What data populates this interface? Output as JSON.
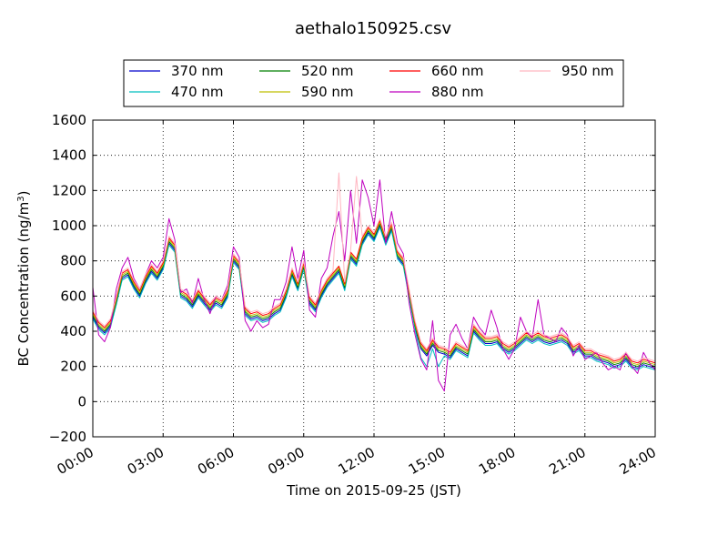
{
  "chart_data": {
    "type": "line",
    "title": "aethalo150925.csv",
    "xlabel": "Time on 2015-09-25 (JST)",
    "ylabel": "BC Concentration (ng/m",
    "ylabel_sup": "3",
    "ylabel_close": ")",
    "xlim": [
      0,
      24
    ],
    "ylim": [
      -200,
      1600
    ],
    "grid": true,
    "legend_position": "top",
    "x_ticks": [
      {
        "value": 0,
        "label": "00:00"
      },
      {
        "value": 3,
        "label": "03:00"
      },
      {
        "value": 6,
        "label": "06:00"
      },
      {
        "value": 9,
        "label": "09:00"
      },
      {
        "value": 12,
        "label": "12:00"
      },
      {
        "value": 15,
        "label": "15:00"
      },
      {
        "value": 18,
        "label": "18:00"
      },
      {
        "value": 21,
        "label": "21:00"
      },
      {
        "value": 24,
        "label": "24:00"
      }
    ],
    "y_ticks": [
      {
        "value": 1600,
        "label": "1600"
      },
      {
        "value": 1400,
        "label": "1400"
      },
      {
        "value": 1200,
        "label": "1200"
      },
      {
        "value": 1000,
        "label": "1000"
      },
      {
        "value": 800,
        "label": "800"
      },
      {
        "value": 600,
        "label": "600"
      },
      {
        "value": 400,
        "label": "400"
      },
      {
        "value": 200,
        "label": "200"
      },
      {
        "value": 0,
        "label": "0"
      },
      {
        "value": -200,
        "label": "−200"
      }
    ],
    "x_hours": [
      0,
      0.25,
      0.5,
      0.75,
      1.0,
      1.25,
      1.5,
      1.75,
      2.0,
      2.25,
      2.5,
      2.75,
      3.0,
      3.25,
      3.5,
      3.75,
      4.0,
      4.25,
      4.5,
      4.75,
      5.0,
      5.25,
      5.5,
      5.75,
      6.0,
      6.25,
      6.5,
      6.75,
      7.0,
      7.25,
      7.5,
      7.75,
      8.0,
      8.25,
      8.5,
      8.75,
      9.0,
      9.25,
      9.5,
      9.75,
      10.0,
      10.25,
      10.5,
      10.75,
      11.0,
      11.25,
      11.5,
      11.75,
      12.0,
      12.25,
      12.5,
      12.75,
      13.0,
      13.25,
      13.5,
      13.75,
      14.0,
      14.25,
      14.5,
      14.75,
      15.0,
      15.25,
      15.5,
      15.75,
      16.0,
      16.25,
      16.5,
      16.75,
      17.0,
      17.25,
      17.5,
      17.75,
      18.0,
      18.25,
      18.5,
      18.75,
      19.0,
      19.25,
      19.5,
      19.75,
      20.0,
      20.25,
      20.5,
      20.75,
      21.0,
      21.25,
      21.5,
      21.75,
      22.0,
      22.25,
      22.5,
      22.75,
      23.0,
      23.25,
      23.5,
      23.75,
      24.0
    ],
    "series": [
      {
        "name": "370 nm",
        "color": "#0000cc",
        "values": [
          480,
          420,
          390,
          430,
          560,
          700,
          720,
          650,
          600,
          680,
          740,
          700,
          760,
          900,
          860,
          600,
          580,
          540,
          600,
          560,
          520,
          560,
          540,
          600,
          800,
          760,
          500,
          470,
          480,
          460,
          470,
          500,
          520,
          600,
          720,
          640,
          760,
          560,
          520,
          600,
          660,
          700,
          740,
          640,
          820,
          780,
          900,
          960,
          920,
          1000,
          900,
          980,
          820,
          780,
          600,
          420,
          300,
          260,
          320,
          280,
          270,
          250,
          300,
          280,
          260,
          400,
          360,
          330,
          330,
          340,
          300,
          280,
          300,
          330,
          360,
          340,
          360,
          340,
          330,
          340,
          350,
          330,
          280,
          300,
          260,
          260,
          240,
          230,
          220,
          200,
          210,
          240,
          200,
          190,
          210,
          200,
          190
        ]
      },
      {
        "name": "470 nm",
        "color": "#00bfbf",
        "values": [
          470,
          410,
          380,
          420,
          550,
          690,
          710,
          640,
          590,
          670,
          730,
          690,
          750,
          890,
          850,
          590,
          570,
          530,
          590,
          550,
          510,
          550,
          530,
          590,
          790,
          750,
          490,
          460,
          470,
          450,
          460,
          490,
          510,
          590,
          710,
          630,
          750,
          550,
          510,
          590,
          650,
          690,
          730,
          630,
          810,
          770,
          890,
          950,
          910,
          990,
          890,
          970,
          810,
          770,
          590,
          410,
          250,
          200,
          300,
          200,
          260,
          240,
          290,
          270,
          250,
          390,
          350,
          320,
          320,
          330,
          290,
          270,
          290,
          320,
          350,
          330,
          350,
          330,
          320,
          330,
          340,
          320,
          270,
          290,
          250,
          250,
          230,
          220,
          210,
          190,
          200,
          230,
          190,
          180,
          200,
          190,
          180
        ]
      },
      {
        "name": "520 nm",
        "color": "#007f00",
        "values": [
          490,
          430,
          400,
          440,
          570,
          710,
          730,
          660,
          610,
          690,
          750,
          710,
          770,
          910,
          870,
          610,
          590,
          550,
          610,
          570,
          530,
          570,
          550,
          610,
          810,
          770,
          510,
          480,
          490,
          470,
          480,
          510,
          530,
          610,
          730,
          650,
          770,
          570,
          530,
          610,
          670,
          710,
          750,
          650,
          830,
          790,
          910,
          970,
          930,
          1010,
          910,
          990,
          830,
          790,
          610,
          430,
          310,
          270,
          330,
          290,
          280,
          260,
          310,
          290,
          270,
          410,
          370,
          340,
          340,
          350,
          310,
          290,
          310,
          340,
          370,
          350,
          370,
          350,
          340,
          350,
          360,
          340,
          290,
          310,
          270,
          270,
          250,
          240,
          230,
          210,
          220,
          250,
          210,
          200,
          220,
          210,
          200
        ]
      },
      {
        "name": "590 nm",
        "color": "#bfbf00",
        "values": [
          500,
          440,
          410,
          450,
          580,
          720,
          740,
          670,
          620,
          700,
          760,
          720,
          780,
          920,
          880,
          620,
          600,
          560,
          620,
          580,
          540,
          580,
          560,
          620,
          820,
          780,
          520,
          490,
          500,
          480,
          490,
          520,
          540,
          620,
          740,
          660,
          780,
          580,
          540,
          620,
          680,
          720,
          760,
          660,
          840,
          800,
          920,
          980,
          940,
          1020,
          920,
          1000,
          840,
          800,
          620,
          440,
          320,
          280,
          340,
          300,
          290,
          270,
          320,
          300,
          280,
          420,
          380,
          350,
          350,
          360,
          320,
          300,
          320,
          350,
          380,
          360,
          380,
          360,
          350,
          360,
          370,
          350,
          300,
          320,
          280,
          280,
          260,
          250,
          240,
          220,
          230,
          260,
          220,
          210,
          230,
          220,
          210
        ]
      },
      {
        "name": "660 nm",
        "color": "#ff0000",
        "values": [
          510,
          450,
          420,
          460,
          590,
          730,
          750,
          680,
          630,
          710,
          770,
          730,
          790,
          930,
          890,
          630,
          610,
          570,
          630,
          590,
          550,
          590,
          570,
          630,
          830,
          790,
          530,
          500,
          510,
          490,
          500,
          530,
          550,
          630,
          750,
          670,
          790,
          590,
          550,
          630,
          690,
          730,
          770,
          670,
          850,
          810,
          930,
          990,
          950,
          1030,
          930,
          1010,
          850,
          810,
          630,
          450,
          330,
          290,
          350,
          310,
          300,
          280,
          330,
          310,
          290,
          430,
          390,
          360,
          360,
          370,
          330,
          310,
          330,
          360,
          390,
          370,
          390,
          370,
          360,
          370,
          380,
          360,
          310,
          330,
          290,
          290,
          270,
          260,
          250,
          230,
          240,
          270,
          230,
          220,
          240,
          230,
          220
        ]
      },
      {
        "name": "880 nm",
        "color": "#bf00bf",
        "values": [
          650,
          380,
          340,
          420,
          640,
          760,
          820,
          700,
          640,
          720,
          800,
          760,
          820,
          1040,
          920,
          620,
          640,
          560,
          700,
          580,
          500,
          600,
          580,
          660,
          880,
          820,
          460,
          400,
          460,
          420,
          440,
          580,
          580,
          680,
          880,
          700,
          860,
          520,
          480,
          700,
          760,
          940,
          1080,
          800,
          1200,
          900,
          1260,
          1160,
          1000,
          1260,
          900,
          1080,
          900,
          840,
          560,
          380,
          240,
          180,
          460,
          120,
          60,
          380,
          440,
          360,
          300,
          480,
          420,
          380,
          520,
          420,
          300,
          240,
          300,
          480,
          400,
          360,
          580,
          380,
          360,
          340,
          420,
          380,
          260,
          320,
          240,
          260,
          280,
          220,
          180,
          200,
          180,
          280,
          200,
          160,
          280,
          220,
          180
        ]
      },
      {
        "name": "950 nm",
        "color": "#ffb6c1",
        "values": [
          520,
          460,
          430,
          470,
          600,
          740,
          760,
          690,
          640,
          720,
          780,
          740,
          800,
          940,
          900,
          640,
          620,
          580,
          640,
          600,
          560,
          600,
          580,
          640,
          840,
          800,
          540,
          510,
          520,
          500,
          510,
          540,
          560,
          640,
          760,
          680,
          800,
          600,
          560,
          640,
          700,
          740,
          1300,
          680,
          860,
          1280,
          940,
          1000,
          960,
          1040,
          940,
          1020,
          860,
          820,
          640,
          460,
          340,
          300,
          360,
          320,
          310,
          290,
          340,
          320,
          300,
          440,
          400,
          370,
          370,
          380,
          340,
          320,
          340,
          370,
          400,
          380,
          400,
          380,
          370,
          380,
          390,
          370,
          320,
          340,
          300,
          300,
          280,
          270,
          260,
          240,
          250,
          280,
          240,
          230,
          250,
          240,
          230
        ]
      }
    ]
  }
}
